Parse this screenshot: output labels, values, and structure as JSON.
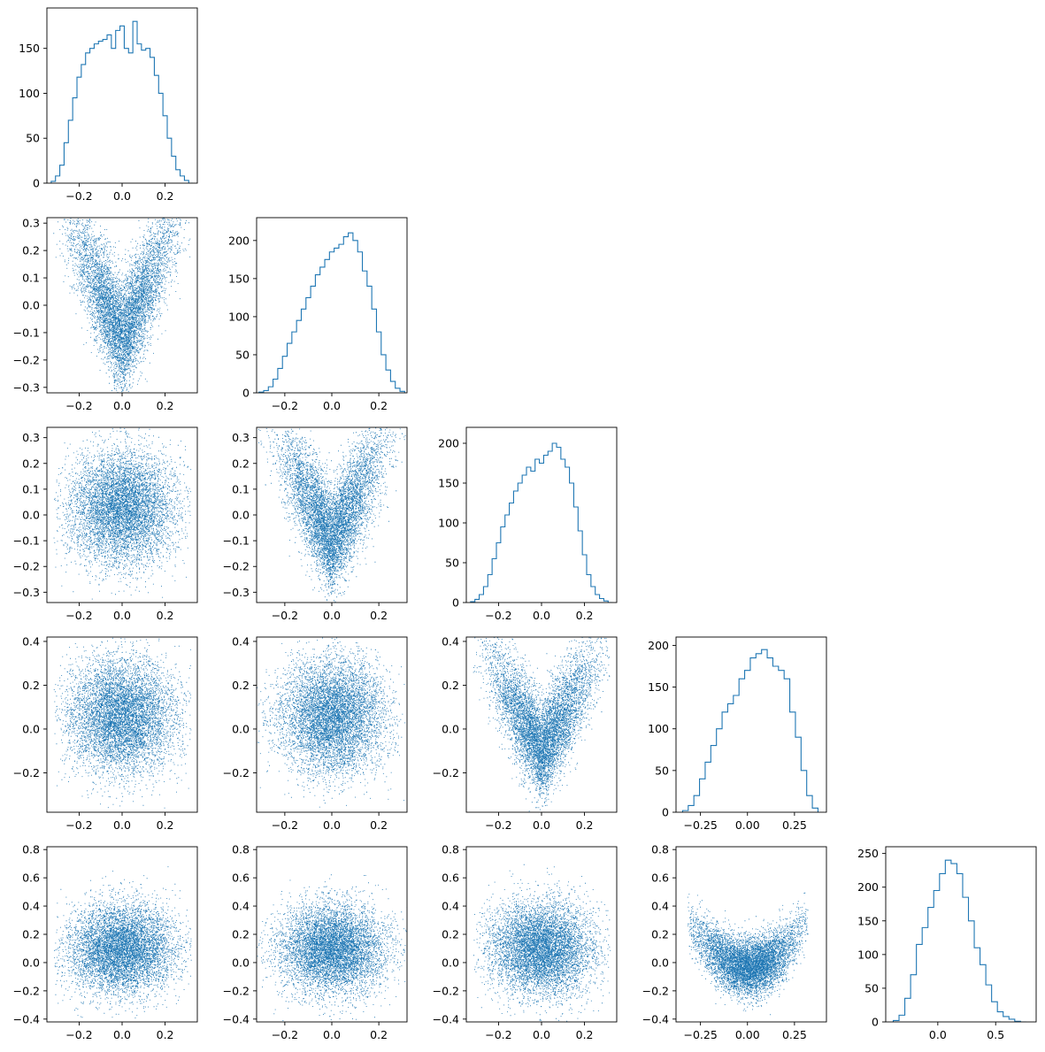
{
  "figure": {
    "type": "corner-plot",
    "dimensions": 5,
    "color": "#1f77b4"
  },
  "chart_data": [
    {
      "panel": "hist-0",
      "row": 0,
      "col": 0,
      "type": "bar",
      "style": "step",
      "xlim": [
        -0.35,
        0.35
      ],
      "xticks": [
        "-0.2",
        "0.0",
        "0.2"
      ],
      "ylim": [
        0,
        195
      ],
      "yticks": [
        "0",
        "50",
        "100",
        "150"
      ],
      "x": [
        -0.32,
        -0.3,
        -0.28,
        -0.26,
        -0.24,
        -0.22,
        -0.2,
        -0.18,
        -0.16,
        -0.14,
        -0.12,
        -0.1,
        -0.08,
        -0.06,
        -0.04,
        -0.02,
        0.0,
        0.02,
        0.04,
        0.06,
        0.08,
        0.1,
        0.12,
        0.14,
        0.16,
        0.18,
        0.2,
        0.22,
        0.24,
        0.26,
        0.28,
        0.3,
        0.32
      ],
      "values": [
        2,
        8,
        20,
        45,
        70,
        95,
        118,
        132,
        145,
        150,
        155,
        158,
        160,
        165,
        150,
        170,
        175,
        150,
        145,
        180,
        155,
        148,
        150,
        140,
        120,
        100,
        75,
        50,
        30,
        15,
        8,
        3,
        0
      ]
    },
    {
      "panel": "scatter-1-0",
      "row": 1,
      "col": 0,
      "type": "scatter",
      "xlim": [
        -0.35,
        0.35
      ],
      "xticks": [
        "-0.2",
        "0.0",
        "0.2"
      ],
      "ylim": [
        -0.32,
        0.32
      ],
      "yticks": [
        "-0.3",
        "-0.2",
        "-0.1",
        "0.0",
        "0.1",
        "0.2",
        "0.3"
      ],
      "n_points": 7000,
      "relation": "banana",
      "x_sd": 0.12,
      "y_sd": 0.1,
      "curvature": 0.0,
      "y_offset": 0.0,
      "seed": 11
    },
    {
      "panel": "hist-1",
      "row": 1,
      "col": 1,
      "type": "bar",
      "style": "step",
      "xlim": [
        -0.32,
        0.32
      ],
      "xticks": [
        "-0.2",
        "0.0",
        "0.2"
      ],
      "ylim": [
        0,
        230
      ],
      "yticks": [
        "0",
        "50",
        "100",
        "150",
        "200"
      ],
      "x": [
        -0.3,
        -0.28,
        -0.26,
        -0.24,
        -0.22,
        -0.2,
        -0.18,
        -0.16,
        -0.14,
        -0.12,
        -0.1,
        -0.08,
        -0.06,
        -0.04,
        -0.02,
        0.0,
        0.02,
        0.04,
        0.06,
        0.08,
        0.1,
        0.12,
        0.14,
        0.16,
        0.18,
        0.2,
        0.22,
        0.24,
        0.26,
        0.28,
        0.3
      ],
      "values": [
        1,
        3,
        8,
        18,
        32,
        48,
        65,
        80,
        95,
        110,
        125,
        140,
        155,
        165,
        175,
        185,
        190,
        195,
        205,
        210,
        200,
        185,
        160,
        140,
        110,
        80,
        50,
        30,
        15,
        6,
        2
      ]
    },
    {
      "panel": "scatter-2-0",
      "row": 2,
      "col": 0,
      "type": "scatter",
      "xlim": [
        -0.35,
        0.35
      ],
      "xticks": [
        "-0.2",
        "0.0",
        "0.2"
      ],
      "ylim": [
        -0.34,
        0.34
      ],
      "yticks": [
        "-0.3",
        "-0.2",
        "-0.1",
        "0.0",
        "0.1",
        "0.2",
        "0.3"
      ],
      "n_points": 7000,
      "relation": "independent",
      "x_sd": 0.12,
      "y_sd": 0.11,
      "curvature": 0.0,
      "y_offset": 0.03,
      "seed": 21
    },
    {
      "panel": "scatter-2-1",
      "row": 2,
      "col": 1,
      "type": "scatter",
      "xlim": [
        -0.32,
        0.32
      ],
      "xticks": [
        "-0.2",
        "0.0",
        "0.2"
      ],
      "ylim": [
        -0.34,
        0.34
      ],
      "yticks": [
        "-0.3",
        "-0.2",
        "-0.1",
        "0.0",
        "0.1",
        "0.2",
        "0.3"
      ],
      "n_points": 7000,
      "relation": "banana",
      "x_sd": 0.11,
      "y_sd": 0.1,
      "curvature": 0.0,
      "y_offset": 0.02,
      "seed": 31
    },
    {
      "panel": "hist-2",
      "row": 2,
      "col": 2,
      "type": "bar",
      "style": "step",
      "xlim": [
        -0.35,
        0.35
      ],
      "xticks": [
        "-0.2",
        "0.0",
        "0.2"
      ],
      "ylim": [
        0,
        220
      ],
      "yticks": [
        "0",
        "50",
        "100",
        "150",
        "200"
      ],
      "x": [
        -0.32,
        -0.3,
        -0.28,
        -0.26,
        -0.24,
        -0.22,
        -0.2,
        -0.18,
        -0.16,
        -0.14,
        -0.12,
        -0.1,
        -0.08,
        -0.06,
        -0.04,
        -0.02,
        0.0,
        0.02,
        0.04,
        0.06,
        0.08,
        0.1,
        0.12,
        0.14,
        0.16,
        0.18,
        0.2,
        0.22,
        0.24,
        0.26,
        0.28,
        0.3,
        0.32
      ],
      "values": [
        1,
        4,
        10,
        20,
        35,
        55,
        75,
        95,
        110,
        125,
        140,
        150,
        160,
        170,
        165,
        180,
        175,
        185,
        190,
        200,
        195,
        180,
        170,
        150,
        120,
        90,
        60,
        35,
        20,
        10,
        5,
        2,
        0
      ]
    },
    {
      "panel": "scatter-3-0",
      "row": 3,
      "col": 0,
      "type": "scatter",
      "xlim": [
        -0.35,
        0.35
      ],
      "xticks": [
        "-0.2",
        "0.0",
        "0.2"
      ],
      "ylim": [
        -0.38,
        0.42
      ],
      "yticks": [
        "-0.2",
        "0.0",
        "0.2",
        "0.4"
      ],
      "n_points": 7000,
      "relation": "independent",
      "x_sd": 0.12,
      "y_sd": 0.13,
      "curvature": 0.0,
      "y_offset": 0.06,
      "seed": 41
    },
    {
      "panel": "scatter-3-1",
      "row": 3,
      "col": 1,
      "type": "scatter",
      "xlim": [
        -0.32,
        0.32
      ],
      "xticks": [
        "-0.2",
        "0.0",
        "0.2"
      ],
      "ylim": [
        -0.38,
        0.42
      ],
      "yticks": [
        "-0.2",
        "0.0",
        "0.2",
        "0.4"
      ],
      "n_points": 7000,
      "relation": "independent",
      "x_sd": 0.11,
      "y_sd": 0.13,
      "curvature": 0.0,
      "y_offset": 0.06,
      "seed": 51
    },
    {
      "panel": "scatter-3-2",
      "row": 3,
      "col": 2,
      "type": "scatter",
      "xlim": [
        -0.35,
        0.35
      ],
      "xticks": [
        "-0.2",
        "0.0",
        "0.2"
      ],
      "ylim": [
        -0.38,
        0.42
      ],
      "yticks": [
        "-0.2",
        "0.0",
        "0.2",
        "0.4"
      ],
      "n_points": 7000,
      "relation": "banana",
      "x_sd": 0.12,
      "y_sd": 0.11,
      "curvature": 0.0,
      "y_offset": 0.02,
      "seed": 61
    },
    {
      "panel": "hist-3",
      "row": 3,
      "col": 3,
      "type": "bar",
      "style": "step",
      "xlim": [
        -0.38,
        0.42
      ],
      "xticks": [
        "-0.25",
        "0.00",
        "0.25"
      ],
      "ylim": [
        0,
        210
      ],
      "yticks": [
        "0",
        "50",
        "100",
        "150",
        "200"
      ],
      "x": [
        -0.33,
        -0.3,
        -0.27,
        -0.24,
        -0.21,
        -0.18,
        -0.15,
        -0.12,
        -0.09,
        -0.06,
        -0.03,
        0.0,
        0.03,
        0.06,
        0.09,
        0.12,
        0.15,
        0.18,
        0.21,
        0.24,
        0.27,
        0.3,
        0.33,
        0.36
      ],
      "values": [
        2,
        8,
        20,
        40,
        60,
        80,
        100,
        120,
        130,
        140,
        160,
        170,
        185,
        190,
        195,
        185,
        175,
        170,
        160,
        120,
        90,
        50,
        20,
        5
      ]
    },
    {
      "panel": "scatter-4-0",
      "row": 4,
      "col": 0,
      "type": "scatter",
      "xlim": [
        -0.35,
        0.35
      ],
      "xticks": [
        "-0.2",
        "0.0",
        "0.2"
      ],
      "ylim": [
        -0.42,
        0.82
      ],
      "yticks": [
        "-0.4",
        "-0.2",
        "0.0",
        "0.2",
        "0.4",
        "0.6",
        "0.8"
      ],
      "n_points": 7000,
      "relation": "independent",
      "x_sd": 0.12,
      "y_sd": 0.16,
      "curvature": 0.0,
      "y_offset": 0.1,
      "seed": 71
    },
    {
      "panel": "scatter-4-1",
      "row": 4,
      "col": 1,
      "type": "scatter",
      "xlim": [
        -0.32,
        0.32
      ],
      "xticks": [
        "-0.2",
        "0.0",
        "0.2"
      ],
      "ylim": [
        -0.42,
        0.82
      ],
      "yticks": [
        "-0.4",
        "-0.2",
        "0.0",
        "0.2",
        "0.4",
        "0.6",
        "0.8"
      ],
      "n_points": 7000,
      "relation": "independent",
      "x_sd": 0.11,
      "y_sd": 0.16,
      "curvature": 0.0,
      "y_offset": 0.1,
      "seed": 81
    },
    {
      "panel": "scatter-4-2",
      "row": 4,
      "col": 2,
      "type": "scatter",
      "xlim": [
        -0.35,
        0.35
      ],
      "xticks": [
        "-0.2",
        "0.0",
        "0.2"
      ],
      "ylim": [
        -0.42,
        0.82
      ],
      "yticks": [
        "-0.4",
        "-0.2",
        "0.0",
        "0.2",
        "0.4",
        "0.6",
        "0.8"
      ],
      "n_points": 7000,
      "relation": "independent",
      "x_sd": 0.12,
      "y_sd": 0.16,
      "curvature": 0.0,
      "y_offset": 0.1,
      "seed": 91
    },
    {
      "panel": "scatter-4-3",
      "row": 4,
      "col": 3,
      "type": "scatter",
      "xlim": [
        -0.38,
        0.42
      ],
      "xticks": [
        "-0.25",
        "0.00",
        "0.25"
      ],
      "ylim": [
        -0.42,
        0.82
      ],
      "yticks": [
        "-0.4",
        "-0.2",
        "0.0",
        "0.2",
        "0.4",
        "0.6",
        "0.8"
      ],
      "n_points": 7000,
      "relation": "parabola",
      "x_sd": 0.14,
      "y_sd": 0.1,
      "curvature": 3.2,
      "y_offset": 0.03,
      "seed": 101
    },
    {
      "panel": "hist-4",
      "row": 4,
      "col": 4,
      "type": "bar",
      "style": "step",
      "xlim": [
        -0.45,
        0.85
      ],
      "xticks": [
        "0.0",
        "0.5"
      ],
      "ylim": [
        0,
        260
      ],
      "yticks": [
        "0",
        "50",
        "100",
        "150",
        "200",
        "250"
      ],
      "x": [
        -0.36,
        -0.31,
        -0.26,
        -0.21,
        -0.16,
        -0.11,
        -0.06,
        -0.01,
        0.04,
        0.09,
        0.14,
        0.19,
        0.24,
        0.29,
        0.34,
        0.39,
        0.44,
        0.49,
        0.54,
        0.59,
        0.64,
        0.69,
        0.74
      ],
      "values": [
        2,
        10,
        35,
        70,
        115,
        140,
        170,
        195,
        220,
        240,
        235,
        220,
        185,
        150,
        110,
        85,
        55,
        30,
        15,
        8,
        4,
        1,
        0
      ]
    }
  ]
}
